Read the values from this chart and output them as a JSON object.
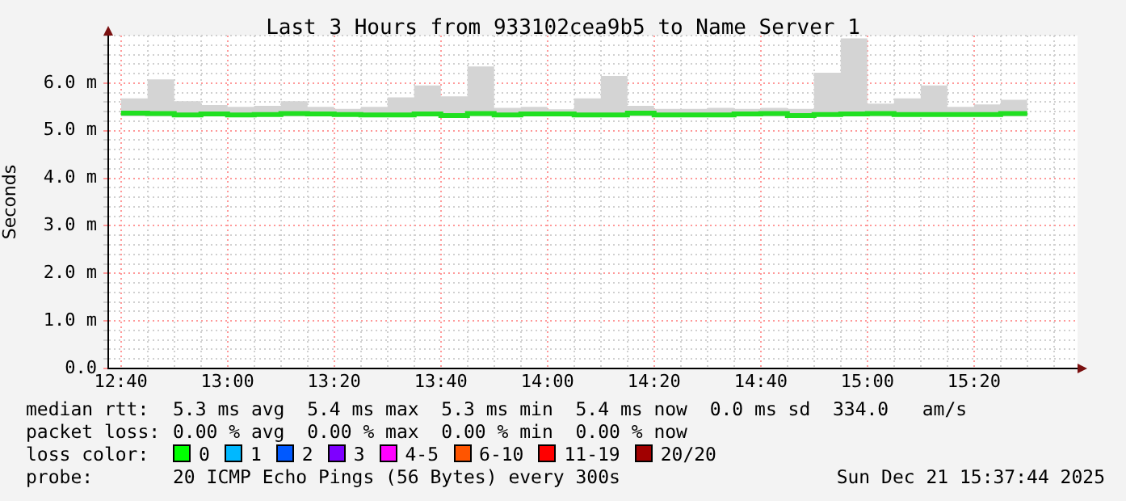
{
  "chart_data": {
    "type": "step",
    "title": "Last 3 Hours from 933102cea9b5 to Name Server 1",
    "ylabel": "Seconds",
    "x": [
      12.6667,
      12.75,
      12.8333,
      12.9167,
      13,
      13.0833,
      13.1667,
      13.25,
      13.3333,
      13.4167,
      13.5,
      13.5833,
      13.6667,
      13.75,
      13.8333,
      13.9167,
      14,
      14.0833,
      14.1667,
      14.25,
      14.3333,
      14.4167,
      14.5,
      14.5833,
      14.6667,
      14.75,
      14.8333,
      14.9167,
      15,
      15.0833,
      15.1667,
      15.25,
      15.3333,
      15.4167,
      15.5
    ],
    "series": [
      {
        "color": "#20e020",
        "values": [
          5.37,
          5.36,
          5.33,
          5.35,
          5.33,
          5.34,
          5.36,
          5.35,
          5.34,
          5.33,
          5.33,
          5.35,
          5.32,
          5.36,
          5.33,
          5.35,
          5.35,
          5.33,
          5.33,
          5.37,
          5.33,
          5.33,
          5.33,
          5.35,
          5.36,
          5.32,
          5.34,
          5.35,
          5.36,
          5.34,
          5.34,
          5.34,
          5.34,
          5.36,
          5.36
        ],
        "lower": [
          5.3,
          5.3,
          5.3,
          5.3,
          5.3,
          5.3,
          5.3,
          5.3,
          5.3,
          5.3,
          5.3,
          5.3,
          5.3,
          5.3,
          5.3,
          5.3,
          5.3,
          5.3,
          5.3,
          5.3,
          5.3,
          5.3,
          5.3,
          5.3,
          5.3,
          5.3,
          5.3,
          5.3,
          5.3,
          5.3,
          5.3,
          5.3,
          5.3,
          5.3,
          5.3
        ],
        "upper": [
          5.68,
          6.08,
          5.62,
          5.54,
          5.5,
          5.52,
          5.62,
          5.5,
          5.46,
          5.5,
          5.7,
          5.95,
          5.72,
          6.35,
          5.48,
          5.5,
          5.45,
          5.68,
          6.15,
          5.52,
          5.46,
          5.46,
          5.48,
          5.46,
          5.48,
          5.46,
          6.22,
          6.94,
          5.57,
          5.68,
          5.95,
          5.5,
          5.55,
          5.65,
          6.03
        ]
      }
    ],
    "xlim": [
      12.627,
      15.657
    ],
    "xticks": [
      {
        "value": 12.6667,
        "label": "12:40"
      },
      {
        "value": 12.75,
        "label": null
      },
      {
        "value": 12.8333,
        "label": null
      },
      {
        "value": 12.9167,
        "label": null
      },
      {
        "value": 13,
        "label": "13:00"
      },
      {
        "value": 13.0833,
        "label": null
      },
      {
        "value": 13.1667,
        "label": null
      },
      {
        "value": 13.25,
        "label": null
      },
      {
        "value": 13.3333,
        "label": "13:20"
      },
      {
        "value": 13.4167,
        "label": null
      },
      {
        "value": 13.5,
        "label": null
      },
      {
        "value": 13.5833,
        "label": null
      },
      {
        "value": 13.6667,
        "label": "13:40"
      },
      {
        "value": 13.75,
        "label": null
      },
      {
        "value": 13.8333,
        "label": null
      },
      {
        "value": 13.9167,
        "label": null
      },
      {
        "value": 14,
        "label": "14:00"
      },
      {
        "value": 14.0833,
        "label": null
      },
      {
        "value": 14.1667,
        "label": null
      },
      {
        "value": 14.25,
        "label": null
      },
      {
        "value": 14.3333,
        "label": "14:20"
      },
      {
        "value": 14.4167,
        "label": null
      },
      {
        "value": 14.5,
        "label": null
      },
      {
        "value": 14.5833,
        "label": null
      },
      {
        "value": 14.6667,
        "label": "14:40"
      },
      {
        "value": 14.75,
        "label": null
      },
      {
        "value": 14.8333,
        "label": null
      },
      {
        "value": 14.9167,
        "label": null
      },
      {
        "value": 15,
        "label": "15:00"
      },
      {
        "value": 15.0833,
        "label": null
      },
      {
        "value": 15.1667,
        "label": null
      },
      {
        "value": 15.25,
        "label": null
      },
      {
        "value": 15.3333,
        "label": "15:20"
      },
      {
        "value": 15.4167,
        "label": null
      },
      {
        "value": 15.5,
        "label": null
      },
      {
        "value": 15.5833,
        "label": null
      }
    ],
    "ylim": [
      0,
      7
    ],
    "yticks": [
      {
        "value": 0,
        "label": "0.0"
      },
      {
        "value": 0.2,
        "label": null
      },
      {
        "value": 0.4,
        "label": null
      },
      {
        "value": 0.6,
        "label": null
      },
      {
        "value": 0.8,
        "label": null
      },
      {
        "value": 1,
        "label": "1.0 m"
      },
      {
        "value": 1.2,
        "label": null
      },
      {
        "value": 1.4,
        "label": null
      },
      {
        "value": 1.6,
        "label": null
      },
      {
        "value": 1.8,
        "label": null
      },
      {
        "value": 2,
        "label": "2.0 m"
      },
      {
        "value": 2.2,
        "label": null
      },
      {
        "value": 2.4,
        "label": null
      },
      {
        "value": 2.6,
        "label": null
      },
      {
        "value": 2.8,
        "label": null
      },
      {
        "value": 3,
        "label": "3.0 m"
      },
      {
        "value": 3.2,
        "label": null
      },
      {
        "value": 3.4,
        "label": null
      },
      {
        "value": 3.6,
        "label": null
      },
      {
        "value": 3.8,
        "label": null
      },
      {
        "value": 4,
        "label": "4.0 m"
      },
      {
        "value": 4.2,
        "label": null
      },
      {
        "value": 4.4,
        "label": null
      },
      {
        "value": 4.6,
        "label": null
      },
      {
        "value": 4.8,
        "label": null
      },
      {
        "value": 5,
        "label": "5.0 m"
      },
      {
        "value": 5.2,
        "label": null
      },
      {
        "value": 5.4,
        "label": null
      },
      {
        "value": 5.6,
        "label": null
      },
      {
        "value": 5.8,
        "label": null
      },
      {
        "value": 6,
        "label": "6.0 m"
      },
      {
        "value": 6.2,
        "label": null
      },
      {
        "value": 6.4,
        "label": null
      },
      {
        "value": 6.6,
        "label": null
      },
      {
        "value": 6.8,
        "label": null
      },
      {
        "value": 7,
        "label": null
      }
    ],
    "grid": true,
    "legend": false,
    "annotations": [
      "median rtt:",
      "5.3 ms avg  5.4 ms max  5.3 ms min  5.4 ms now  0.0 ms sd  334.0   am/s",
      "packet loss:",
      "0.00 % avg  0.00 % max  0.00 % min  0.00 % now",
      "loss color:",
      "0",
      "1",
      "2",
      "3",
      "4-5",
      "6-10",
      "11-19",
      "20/20",
      "probe:",
      "20 ICMP Echo Pings (56 Bytes) every 300s",
      "Sun Dec 21 15:37:44 2025"
    ]
  }
}
